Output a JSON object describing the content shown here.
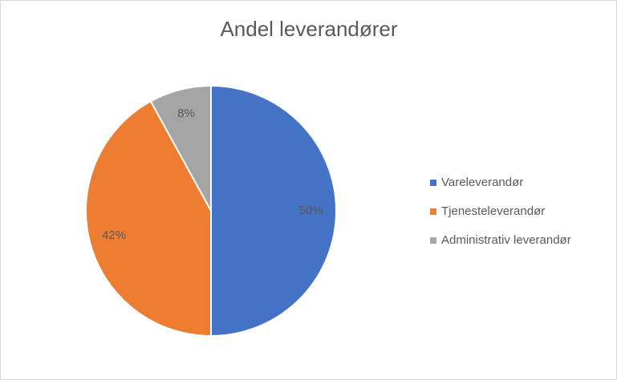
{
  "chart_data": {
    "type": "pie",
    "title": "Andel leverandører",
    "categories": [
      "Vareleverandør",
      "Tjenesteleverandør",
      "Administrativ leverandør"
    ],
    "values": [
      50,
      42,
      8
    ],
    "value_labels": [
      "50%",
      "42%",
      "8%"
    ],
    "colors": [
      "#4472c4",
      "#ed7d31",
      "#a5a5a5"
    ],
    "legend": "right"
  }
}
